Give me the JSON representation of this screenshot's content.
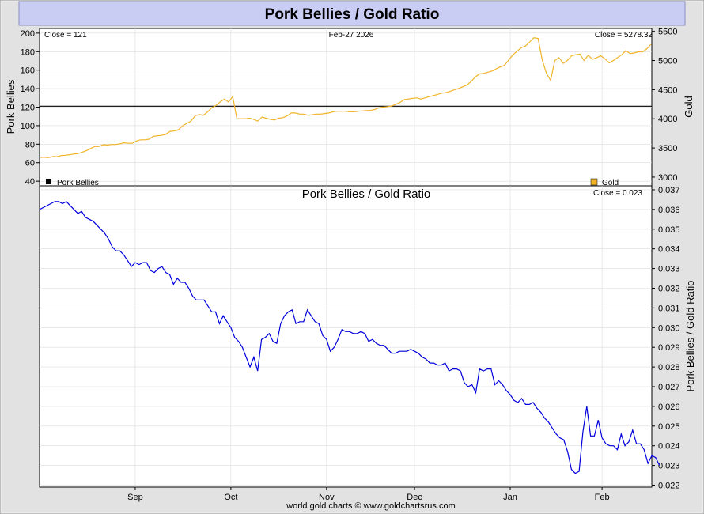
{
  "header": {
    "title": "Pork Bellies / Gold Ratio"
  },
  "footer": {
    "credit": "world gold charts © www.goldchartsrus.com"
  },
  "colors": {
    "gold_line": "#f0b429",
    "pork_line": "#000000",
    "ratio_line": "#0000dd",
    "title_bg": "#c9cdf3",
    "frame_bg": "#e4e4e4"
  },
  "chart_data": [
    {
      "type": "line",
      "panel": "top",
      "info_left": "Close = 121",
      "info_center": "Feb-27  2026",
      "info_right": "Close = 5278.32",
      "ylabel_left": "Pork Bellies",
      "ylabel_right": "Gold",
      "y_left_ticks": [
        "200",
        "180",
        "160",
        "140",
        "120",
        "100",
        "80",
        "60",
        "40"
      ],
      "y_right_ticks": [
        "5500",
        "5000",
        "4500",
        "4000",
        "3500",
        "3000"
      ],
      "ylim_left": [
        35,
        205
      ],
      "ylim_right": [
        2850,
        5550
      ],
      "legend_placement": "bottom",
      "series": [
        {
          "name": "Pork Bellies",
          "color": "#000000",
          "legend_placement": "bottom-left",
          "constant": 121
        },
        {
          "name": "Gold",
          "color": "#f0b429",
          "legend_placement": "bottom-right",
          "values": [
            3340,
            3340,
            3335,
            3355,
            3350,
            3370,
            3375,
            3385,
            3395,
            3405,
            3425,
            3455,
            3490,
            3525,
            3525,
            3555,
            3550,
            3560,
            3560,
            3570,
            3590,
            3580,
            3580,
            3620,
            3640,
            3640,
            3650,
            3700,
            3710,
            3715,
            3735,
            3785,
            3790,
            3810,
            3880,
            3920,
            3960,
            4050,
            4075,
            4060,
            4120,
            4190,
            4230,
            4290,
            4340,
            4290,
            4380,
            4000,
            4000,
            4000,
            4010,
            3990,
            3960,
            4030,
            4010,
            3990,
            3980,
            4010,
            4020,
            4050,
            4100,
            4100,
            4080,
            4080,
            4060,
            4070,
            4080,
            4080,
            4090,
            4100,
            4120,
            4130,
            4130,
            4130,
            4120,
            4120,
            4130,
            4135,
            4140,
            4145,
            4160,
            4190,
            4200,
            4210,
            4220,
            4250,
            4280,
            4330,
            4340,
            4350,
            4360,
            4340,
            4360,
            4380,
            4400,
            4420,
            4440,
            4450,
            4470,
            4500,
            4520,
            4550,
            4580,
            4640,
            4720,
            4770,
            4780,
            4800,
            4820,
            4860,
            4890,
            4920,
            5010,
            5100,
            5160,
            5220,
            5250,
            5320,
            5390,
            5380,
            5010,
            4780,
            4660,
            5000,
            5050,
            4950,
            5000,
            5080,
            5100,
            5110,
            5000,
            5090,
            5020,
            5050,
            5080,
            5030,
            4960,
            5000,
            5050,
            5100,
            5170,
            5120,
            5130,
            5150,
            5150,
            5200,
            5278.32
          ]
        }
      ]
    },
    {
      "type": "line",
      "panel": "bottom",
      "title": "Pork Bellies  /  Gold Ratio",
      "info_right": "Close = 0.023",
      "ylabel_right": "Pork Bellies / Gold Ratio",
      "y_ticks": [
        "0.037",
        "0.036",
        "0.035",
        "0.034",
        "0.033",
        "0.032",
        "0.031",
        "0.030",
        "0.029",
        "0.028",
        "0.027",
        "0.026",
        "0.025",
        "0.024",
        "0.023",
        "0.022"
      ],
      "ylim": [
        0.0219,
        0.0372
      ],
      "x_tick_labels": [
        "Sep",
        "Oct",
        "Nov",
        "Dec",
        "Jan",
        "Feb"
      ],
      "x_tick_positions": [
        25,
        50,
        75,
        98,
        123,
        147
      ],
      "x_count": 160,
      "series": [
        {
          "name": "",
          "color": "#0000dd",
          "points": [
            [
              0,
              0.036
            ],
            [
              2,
              0.0362
            ],
            [
              4,
              0.0364
            ],
            [
              5,
              0.0364
            ],
            [
              6,
              0.0363
            ],
            [
              7,
              0.0364
            ],
            [
              8,
              0.0362
            ],
            [
              9,
              0.036
            ],
            [
              10,
              0.0358
            ],
            [
              11,
              0.0359
            ],
            [
              12,
              0.0356
            ],
            [
              14,
              0.0354
            ],
            [
              15,
              0.0352
            ],
            [
              16,
              0.035
            ],
            [
              17,
              0.0348
            ],
            [
              18,
              0.0345
            ],
            [
              19,
              0.0341
            ],
            [
              20,
              0.0339
            ],
            [
              21,
              0.0339
            ],
            [
              22,
              0.0337
            ],
            [
              23,
              0.0334
            ],
            [
              24,
              0.0331
            ],
            [
              25,
              0.0333
            ],
            [
              26,
              0.0332
            ],
            [
              27,
              0.0333
            ],
            [
              28,
              0.0333
            ],
            [
              29,
              0.0329
            ],
            [
              30,
              0.0328
            ],
            [
              31,
              0.033
            ],
            [
              32,
              0.0331
            ],
            [
              33,
              0.0328
            ],
            [
              34,
              0.0327
            ],
            [
              35,
              0.0322
            ],
            [
              36,
              0.0325
            ],
            [
              37,
              0.0323
            ],
            [
              38,
              0.0323
            ],
            [
              39,
              0.032
            ],
            [
              40,
              0.0316
            ],
            [
              41,
              0.0314
            ],
            [
              42,
              0.0314
            ],
            [
              43,
              0.0314
            ],
            [
              44,
              0.0311
            ],
            [
              45,
              0.0308
            ],
            [
              46,
              0.0308
            ],
            [
              47,
              0.0302
            ],
            [
              48,
              0.0306
            ],
            [
              49,
              0.0303
            ],
            [
              50,
              0.03
            ],
            [
              51,
              0.0295
            ],
            [
              52,
              0.0293
            ],
            [
              53,
              0.029
            ],
            [
              54,
              0.0285
            ],
            [
              55,
              0.028
            ],
            [
              56,
              0.0285
            ],
            [
              57,
              0.0278
            ],
            [
              58,
              0.0294
            ],
            [
              59,
              0.0295
            ],
            [
              60,
              0.0297
            ],
            [
              61,
              0.0293
            ],
            [
              62,
              0.0292
            ],
            [
              63,
              0.0302
            ],
            [
              64,
              0.0306
            ],
            [
              65,
              0.0308
            ],
            [
              66,
              0.0309
            ],
            [
              67,
              0.0302
            ],
            [
              68,
              0.0303
            ],
            [
              69,
              0.0303
            ],
            [
              70,
              0.0309
            ],
            [
              71,
              0.0306
            ],
            [
              72,
              0.0303
            ],
            [
              73,
              0.0302
            ],
            [
              74,
              0.0296
            ],
            [
              75,
              0.0294
            ],
            [
              76,
              0.0288
            ],
            [
              77,
              0.029
            ],
            [
              78,
              0.0294
            ],
            [
              79,
              0.0299
            ],
            [
              80,
              0.0298
            ],
            [
              81,
              0.0298
            ],
            [
              82,
              0.0297
            ],
            [
              83,
              0.0297
            ],
            [
              84,
              0.0298
            ],
            [
              85,
              0.0297
            ],
            [
              86,
              0.0293
            ],
            [
              87,
              0.0294
            ],
            [
              88,
              0.0292
            ],
            [
              89,
              0.0291
            ],
            [
              90,
              0.0291
            ],
            [
              91,
              0.0289
            ],
            [
              92,
              0.0287
            ],
            [
              93,
              0.0287
            ],
            [
              94,
              0.0288
            ],
            [
              95,
              0.0288
            ],
            [
              96,
              0.0288
            ],
            [
              97,
              0.0289
            ],
            [
              98,
              0.0288
            ],
            [
              99,
              0.0287
            ],
            [
              100,
              0.0285
            ],
            [
              101,
              0.0284
            ],
            [
              102,
              0.0282
            ],
            [
              103,
              0.0282
            ],
            [
              104,
              0.0281
            ],
            [
              105,
              0.0281
            ],
            [
              106,
              0.0282
            ],
            [
              107,
              0.0278
            ],
            [
              108,
              0.0279
            ],
            [
              109,
              0.0279
            ],
            [
              110,
              0.0278
            ],
            [
              111,
              0.0272
            ],
            [
              112,
              0.027
            ],
            [
              113,
              0.0271
            ],
            [
              114,
              0.0267
            ],
            [
              115,
              0.0279
            ],
            [
              116,
              0.0278
            ],
            [
              117,
              0.0279
            ],
            [
              118,
              0.0279
            ],
            [
              119,
              0.0271
            ],
            [
              120,
              0.0273
            ],
            [
              121,
              0.0271
            ],
            [
              122,
              0.0268
            ],
            [
              123,
              0.0266
            ],
            [
              124,
              0.0263
            ],
            [
              125,
              0.0262
            ],
            [
              126,
              0.0264
            ],
            [
              127,
              0.0261
            ],
            [
              128,
              0.0261
            ],
            [
              129,
              0.0262
            ],
            [
              130,
              0.0259
            ],
            [
              131,
              0.0257
            ],
            [
              132,
              0.0254
            ],
            [
              133,
              0.0252
            ],
            [
              134,
              0.0249
            ],
            [
              135,
              0.0246
            ],
            [
              136,
              0.0244
            ],
            [
              137,
              0.0243
            ],
            [
              138,
              0.0237
            ],
            [
              139,
              0.0228
            ],
            [
              140,
              0.0226
            ],
            [
              141,
              0.0227
            ],
            [
              142,
              0.0247
            ],
            [
              143,
              0.026
            ],
            [
              144,
              0.0245
            ],
            [
              145,
              0.0245
            ],
            [
              146,
              0.0253
            ],
            [
              147,
              0.0244
            ],
            [
              148,
              0.0241
            ],
            [
              149,
              0.024
            ],
            [
              150,
              0.024
            ],
            [
              151,
              0.0238
            ],
            [
              152,
              0.0246
            ],
            [
              153,
              0.024
            ],
            [
              154,
              0.0242
            ],
            [
              155,
              0.0248
            ],
            [
              156,
              0.0241
            ],
            [
              157,
              0.0241
            ],
            [
              158,
              0.0238
            ],
            [
              159,
              0.0231
            ],
            [
              160,
              0.0235
            ],
            [
              161,
              0.0234
            ],
            [
              162,
              0.023
            ]
          ]
        }
      ]
    }
  ]
}
